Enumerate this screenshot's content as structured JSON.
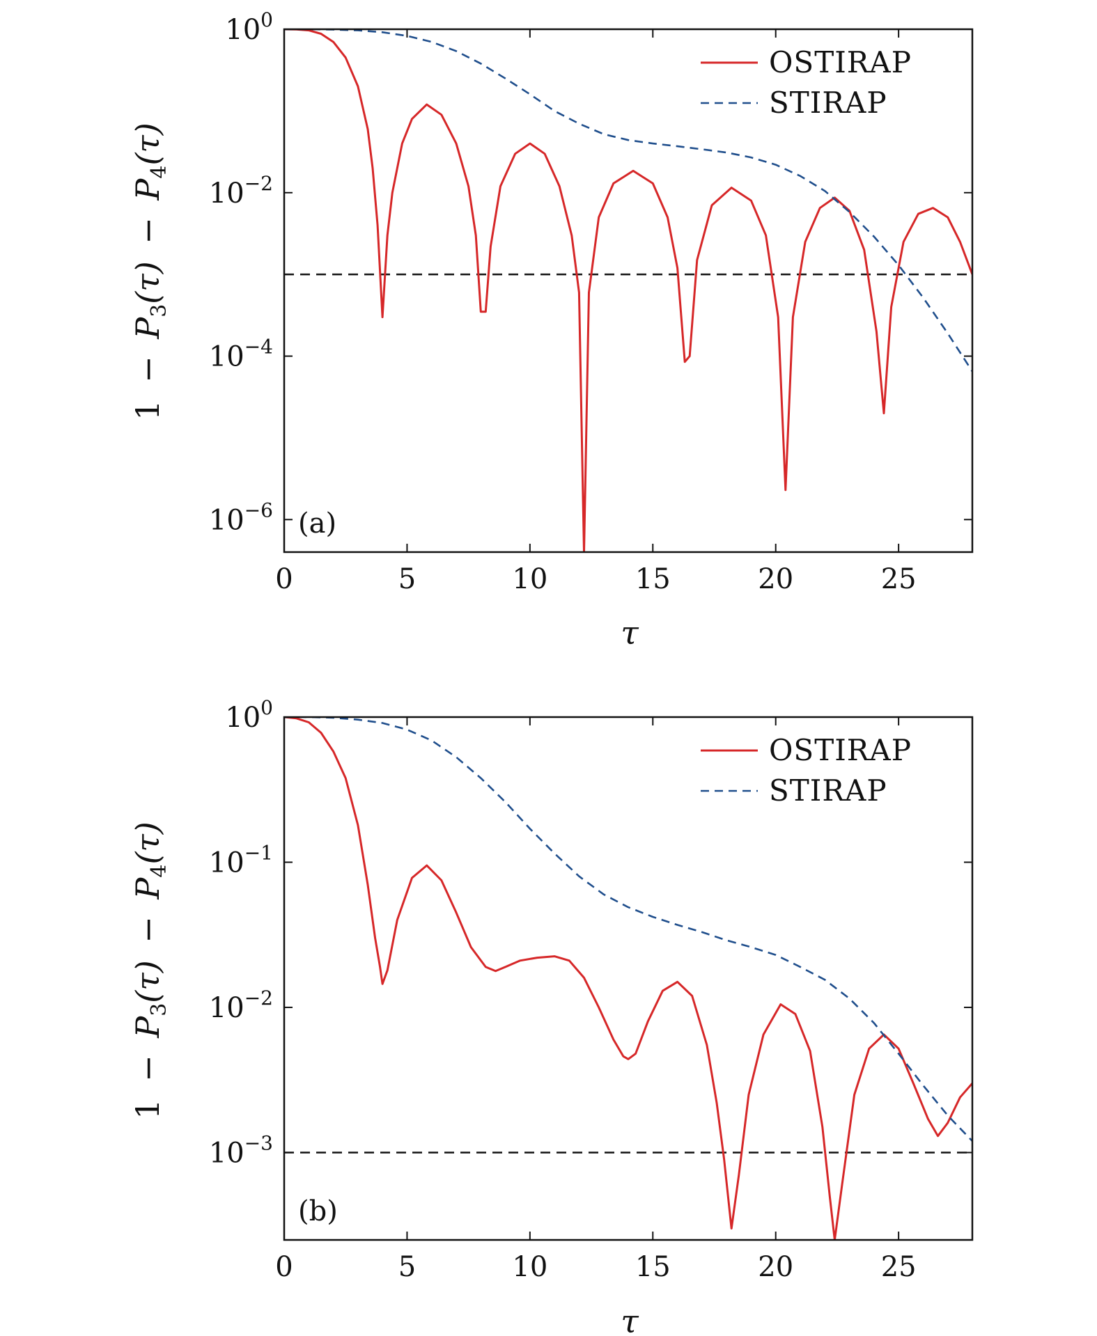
{
  "chart_data": [
    {
      "panel": "(a)",
      "type": "line",
      "yscale": "log",
      "xlim": [
        0,
        28
      ],
      "ylim": [
        4e-07,
        1
      ],
      "xticks": [
        "0",
        "5",
        "10",
        "15",
        "20",
        "25"
      ],
      "xtick_values": [
        0,
        5,
        10,
        15,
        20,
        25
      ],
      "yticks": [
        {
          "value": 1,
          "base": "10",
          "exp": "0"
        },
        {
          "value": 0.01,
          "base": "10",
          "exp": "−2"
        },
        {
          "value": 0.0001,
          "base": "10",
          "exp": "−4"
        },
        {
          "value": 1e-06,
          "base": "10",
          "exp": "−6"
        }
      ],
      "xlabel": "τ",
      "ylabel": "1 − P3(τ) − P4(τ)",
      "ylabel_parts": {
        "one": "1",
        "minus1": "−",
        "p1": "P",
        "s1": "3",
        "tau1": "(τ)",
        "minus2": "−",
        "p2": "P",
        "s2": "4",
        "tau2": "(τ)"
      },
      "legend_position": "top-right",
      "threshold": 0.001,
      "series": [
        {
          "name": "OSTIRAP",
          "color": "#d62728",
          "style": "solid",
          "x": [
            0,
            0.5,
            1,
            1.5,
            2,
            2.5,
            3,
            3.4,
            3.6,
            3.8,
            4.0,
            4.2,
            4.4,
            4.8,
            5.2,
            5.8,
            6.4,
            7.0,
            7.5,
            7.8,
            8.0,
            8.2,
            8.4,
            8.8,
            9.4,
            10.0,
            10.6,
            11.2,
            11.7,
            12.0,
            12.2,
            12.4,
            12.8,
            13.4,
            14.2,
            15.0,
            15.6,
            16.0,
            16.3,
            16.5,
            16.8,
            17.4,
            18.2,
            19.0,
            19.6,
            20.1,
            20.4,
            20.7,
            21.2,
            21.8,
            22.4,
            23.0,
            23.6,
            24.1,
            24.4,
            24.7,
            25.2,
            25.8,
            26.4,
            27.0,
            27.5,
            28.0
          ],
          "y": [
            1.0,
            0.995,
            0.97,
            0.88,
            0.7,
            0.45,
            0.2,
            0.06,
            0.02,
            0.004,
            0.0003,
            0.003,
            0.01,
            0.04,
            0.08,
            0.12,
            0.09,
            0.04,
            0.012,
            0.003,
            0.00035,
            0.00035,
            0.0022,
            0.012,
            0.03,
            0.04,
            0.03,
            0.012,
            0.003,
            0.0006,
            4e-07,
            0.0006,
            0.005,
            0.013,
            0.0185,
            0.013,
            0.005,
            0.0012,
            8.5e-05,
            0.0001,
            0.0015,
            0.007,
            0.0115,
            0.008,
            0.003,
            0.0003,
            2.3e-06,
            0.0003,
            0.0025,
            0.0065,
            0.0087,
            0.006,
            0.002,
            0.0002,
            2e-05,
            0.0004,
            0.0025,
            0.0055,
            0.0065,
            0.005,
            0.0025,
            0.001
          ]
        },
        {
          "name": "STIRAP",
          "color": "#1f4e8c",
          "style": "dashed",
          "x": [
            0,
            1,
            2,
            3,
            4,
            5,
            6,
            7,
            8,
            9,
            10,
            11,
            12,
            13,
            14,
            15,
            16,
            17,
            18,
            19,
            20,
            21,
            22,
            23,
            24,
            25,
            26,
            27,
            28
          ],
          "y": [
            1.0,
            1.0,
            0.99,
            0.97,
            0.92,
            0.83,
            0.7,
            0.54,
            0.38,
            0.25,
            0.16,
            0.1,
            0.07,
            0.052,
            0.044,
            0.04,
            0.037,
            0.034,
            0.031,
            0.027,
            0.022,
            0.016,
            0.0105,
            0.0058,
            0.0029,
            0.0013,
            0.00052,
            0.00019,
            6.5e-05
          ]
        }
      ]
    },
    {
      "panel": "(b)",
      "type": "line",
      "yscale": "log",
      "xlim": [
        0,
        28
      ],
      "ylim": [
        0.00025,
        1
      ],
      "xticks": [
        "0",
        "5",
        "10",
        "15",
        "20",
        "25"
      ],
      "xtick_values": [
        0,
        5,
        10,
        15,
        20,
        25
      ],
      "yticks": [
        {
          "value": 1,
          "base": "10",
          "exp": "0"
        },
        {
          "value": 0.1,
          "base": "10",
          "exp": "−1"
        },
        {
          "value": 0.01,
          "base": "10",
          "exp": "−2"
        },
        {
          "value": 0.001,
          "base": "10",
          "exp": "−3"
        }
      ],
      "xlabel": "τ",
      "ylabel": "1 − P3(τ) − P4(τ)",
      "ylabel_parts": {
        "one": "1",
        "minus1": "−",
        "p1": "P",
        "s1": "3",
        "tau1": "(τ)",
        "minus2": "−",
        "p2": "P",
        "s2": "4",
        "tau2": "(τ)"
      },
      "legend_position": "top-right",
      "threshold": 0.001,
      "series": [
        {
          "name": "OSTIRAP",
          "color": "#d62728",
          "style": "solid",
          "x": [
            0,
            0.5,
            1,
            1.5,
            2,
            2.5,
            3,
            3.4,
            3.7,
            3.9,
            4.0,
            4.2,
            4.6,
            5.2,
            5.8,
            6.4,
            7.0,
            7.6,
            8.2,
            8.6,
            9.0,
            9.6,
            10.3,
            11.0,
            11.6,
            12.2,
            12.8,
            13.4,
            13.8,
            14.0,
            14.3,
            14.8,
            15.4,
            16.0,
            16.6,
            17.2,
            17.6,
            17.9,
            18.2,
            18.5,
            18.9,
            19.5,
            20.2,
            20.8,
            21.4,
            21.9,
            22.2,
            22.4,
            22.7,
            23.2,
            23.8,
            24.4,
            25.0,
            25.6,
            26.2,
            26.6,
            27.0,
            27.5,
            28.0
          ],
          "y": [
            1.0,
            0.98,
            0.92,
            0.78,
            0.58,
            0.38,
            0.18,
            0.07,
            0.03,
            0.019,
            0.0145,
            0.018,
            0.04,
            0.078,
            0.095,
            0.075,
            0.045,
            0.026,
            0.019,
            0.0178,
            0.019,
            0.021,
            0.022,
            0.0225,
            0.021,
            0.016,
            0.01,
            0.006,
            0.0046,
            0.0044,
            0.0048,
            0.008,
            0.013,
            0.015,
            0.012,
            0.0055,
            0.0022,
            0.0009,
            0.0003,
            0.0007,
            0.0025,
            0.0065,
            0.0105,
            0.009,
            0.005,
            0.0015,
            0.0005,
            0.00025,
            0.0006,
            0.0025,
            0.0052,
            0.0065,
            0.0052,
            0.003,
            0.0017,
            0.0013,
            0.0016,
            0.0024,
            0.003
          ]
        },
        {
          "name": "STIRAP",
          "color": "#1f4e8c",
          "style": "dashed",
          "x": [
            0,
            1,
            2,
            3,
            4,
            5,
            6,
            7,
            8,
            9,
            10,
            11,
            12,
            13,
            14,
            15,
            16,
            17,
            18,
            19,
            20,
            21,
            22,
            23,
            24,
            25,
            26,
            27,
            28
          ],
          "y": [
            1.0,
            1.0,
            0.99,
            0.96,
            0.91,
            0.82,
            0.69,
            0.53,
            0.38,
            0.26,
            0.17,
            0.115,
            0.08,
            0.06,
            0.049,
            0.042,
            0.037,
            0.033,
            0.029,
            0.026,
            0.023,
            0.019,
            0.0155,
            0.0115,
            0.0078,
            0.0048,
            0.0029,
            0.0018,
            0.0012
          ]
        }
      ]
    }
  ]
}
